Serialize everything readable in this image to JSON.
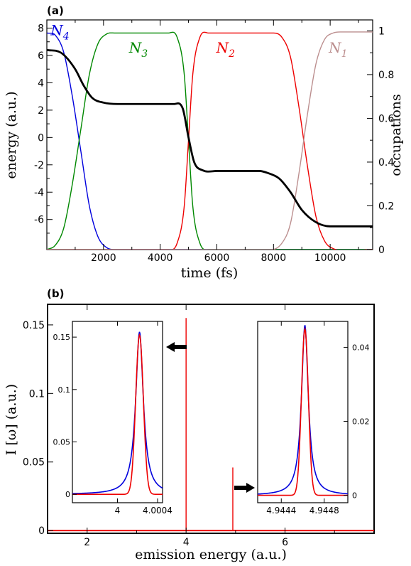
{
  "panels": [
    {
      "label": "(a)"
    },
    {
      "label": "(b)"
    }
  ],
  "chart_data": [
    {
      "type": "line",
      "panel": "(a)",
      "xlabel": "time (fs)",
      "ylabel": "energy (a.u.)",
      "y2label": "occupations",
      "xlim": [
        0,
        11500
      ],
      "ylim": [
        -8.2,
        8.6
      ],
      "y2lim": [
        0,
        1.05
      ],
      "xticks": [
        2000,
        4000,
        6000,
        8000,
        10000
      ],
      "xtick_labels": [
        "2000",
        "4000",
        "6000",
        "8000",
        "10000"
      ],
      "yticks": [
        8,
        6,
        4,
        2,
        0,
        -2,
        -4,
        -6
      ],
      "ytick_labels": [
        "8",
        "6",
        "4",
        "2",
        "0",
        "-2",
        "-4",
        "-6"
      ],
      "y2ticks": [
        1,
        0.8,
        0.6,
        0.4,
        0.2,
        0
      ],
      "y2tick_labels": [
        "1",
        "0.8",
        "0.6",
        "0.4",
        "0.2",
        "0"
      ],
      "grid": false,
      "series": [
        {
          "name": "energy",
          "axis": "left",
          "color": "#000000",
          "x": [
            0,
            500,
            1000,
            1300,
            1600,
            2000,
            2500,
            4500,
            4800,
            5000,
            5200,
            5500,
            6000,
            7500,
            7800,
            8200,
            8600,
            9000,
            9500,
            10000,
            11500
          ],
          "y": [
            6.4,
            6.2,
            5.0,
            3.8,
            2.9,
            2.55,
            2.45,
            2.45,
            2.1,
            0.0,
            -1.8,
            -2.4,
            -2.45,
            -2.45,
            -2.6,
            -3.0,
            -4.0,
            -5.3,
            -6.2,
            -6.5,
            -6.5
          ]
        },
        {
          "name": "N4",
          "axis": "right",
          "color": "#0000dd",
          "x": [
            0,
            300,
            600,
            900,
            1200,
            1500,
            1800,
            2100,
            2400,
            11500
          ],
          "y": [
            0.99,
            0.98,
            0.9,
            0.7,
            0.45,
            0.2,
            0.06,
            0.01,
            0,
            0
          ]
        },
        {
          "name": "N3",
          "axis": "right",
          "color": "#008800",
          "x": [
            0,
            300,
            600,
            900,
            1200,
            1500,
            1800,
            2100,
            2400,
            4300,
            4600,
            4850,
            5000,
            5150,
            5400,
            5700,
            11500
          ],
          "y": [
            0,
            0.02,
            0.1,
            0.3,
            0.55,
            0.8,
            0.94,
            0.985,
            0.99,
            0.99,
            0.97,
            0.8,
            0.5,
            0.2,
            0.03,
            0,
            0
          ]
        },
        {
          "name": "N2",
          "axis": "right",
          "color": "#ee0000",
          "x": [
            0,
            4300,
            4600,
            4850,
            5000,
            5150,
            5400,
            5700,
            8000,
            8300,
            8600,
            8900,
            9200,
            9500,
            9800,
            10100,
            11500
          ],
          "y": [
            0,
            0,
            0.03,
            0.2,
            0.5,
            0.8,
            0.97,
            0.99,
            0.99,
            0.97,
            0.88,
            0.65,
            0.38,
            0.15,
            0.04,
            0.005,
            0
          ]
        },
        {
          "name": "N1",
          "axis": "right",
          "color": "#bc8f8f",
          "x": [
            0,
            7900,
            8300,
            8600,
            8900,
            9200,
            9500,
            9800,
            10100,
            10400,
            11500
          ],
          "y": [
            0,
            0,
            0.03,
            0.12,
            0.35,
            0.62,
            0.85,
            0.96,
            0.99,
            0.995,
            0.995
          ]
        }
      ],
      "annotations": [
        {
          "text": "N4",
          "base": "N",
          "sub": "4",
          "color": "#0000dd"
        },
        {
          "text": "N3",
          "base": "N",
          "sub": "3",
          "color": "#008800"
        },
        {
          "text": "N2",
          "base": "N",
          "sub": "2",
          "color": "#ee0000"
        },
        {
          "text": "N1",
          "base": "N",
          "sub": "1",
          "color": "#bc8f8f"
        }
      ]
    },
    {
      "type": "line",
      "panel": "(b)",
      "xlabel": "emission energy (a.u.)",
      "ylabel": "I [ω]   (a.u.)",
      "xlim": [
        1.2,
        7.8
      ],
      "ylim": [
        -0.002,
        0.165
      ],
      "xticks": [
        2,
        4,
        6
      ],
      "xtick_labels": [
        "2",
        "4",
        "6"
      ],
      "yticks": [
        0,
        0.05,
        0.1,
        0.15
      ],
      "ytick_labels": [
        "0",
        "0.05",
        "0.1",
        "0.15"
      ],
      "grid": false,
      "series": [
        {
          "name": "spectrum",
          "color": "#ee0000",
          "x": [
            1.2,
            3.9999,
            4.0002,
            4.0005,
            4.9443,
            4.9446,
            4.9449,
            7.8
          ],
          "y": [
            0,
            0,
            0.155,
            0,
            0,
            0.046,
            0,
            0
          ]
        }
      ],
      "arrows": [
        {
          "direction": "left",
          "color": "#000000"
        },
        {
          "direction": "right",
          "color": "#000000"
        }
      ],
      "insets": [
        {
          "position": "left",
          "xlim": [
            3.99955,
            4.00045
          ],
          "ylim": [
            -0.008,
            0.165
          ],
          "xticks": [
            4.0,
            4.0004
          ],
          "xtick_labels": [
            "4",
            "4.0004"
          ],
          "yticks": [
            0,
            0.05,
            0.1,
            0.15
          ],
          "ytick_labels": [
            "0",
            "0.05",
            "0.1",
            "0.15"
          ],
          "peak": 4.00022,
          "series": [
            {
              "name": "blue",
              "color": "#0000dd",
              "shape": "lorentzian",
              "height": 0.155,
              "gamma": 4.6e-05
            },
            {
              "name": "red",
              "color": "#ee0000",
              "shape": "gaussian",
              "height": 0.152,
              "sigma": 3.8e-05
            }
          ]
        },
        {
          "position": "right",
          "xlim": [
            4.94418,
            4.94502
          ],
          "ylim": [
            -0.002,
            0.047
          ],
          "xticks": [
            4.9444,
            4.9448
          ],
          "xtick_labels": [
            "4.9444",
            "4.9448"
          ],
          "yticks": [
            0,
            0.02,
            0.04
          ],
          "ytick_labels": [
            "0",
            "0.02",
            "0.04"
          ],
          "peak": 4.94462,
          "series": [
            {
              "name": "blue",
              "color": "#0000dd",
              "shape": "lorentzian",
              "height": 0.046,
              "gamma": 3.8e-05
            },
            {
              "name": "red",
              "color": "#ee0000",
              "shape": "gaussian",
              "height": 0.045,
              "sigma": 3.2e-05
            }
          ]
        }
      ]
    }
  ]
}
